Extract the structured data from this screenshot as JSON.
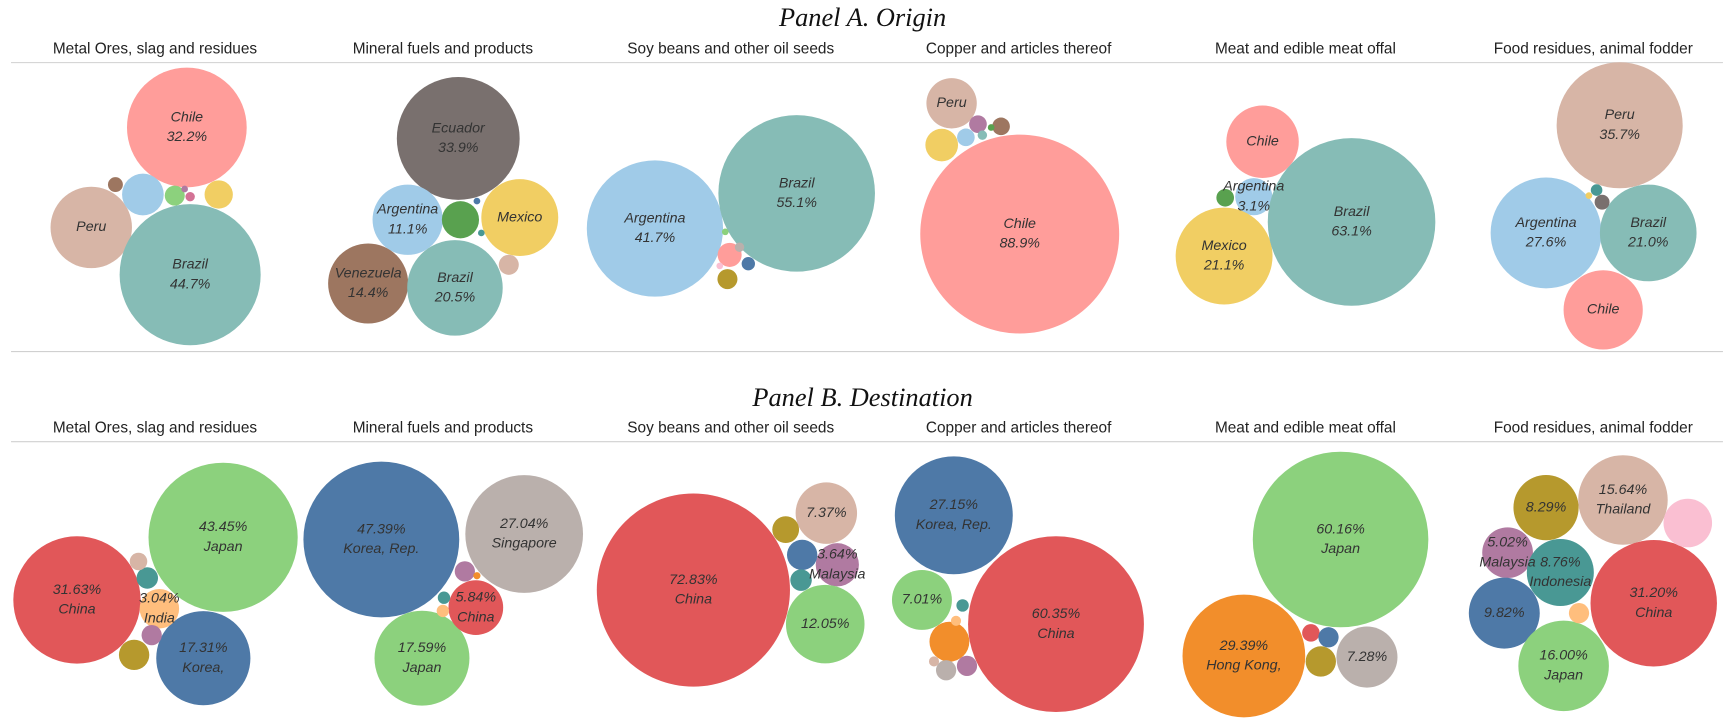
{
  "panel_titles": [
    "Panel A. Origin",
    "Panel B. Destination"
  ],
  "chart_data": [
    {
      "type": "bubble",
      "title": "Metal Ores, slag and residues",
      "categories": [
        "Chile",
        "Peru",
        "Brazil",
        null,
        null,
        null,
        null,
        null,
        null
      ],
      "values": [
        32.2,
        14.9,
        44.7,
        3.9,
        0.9,
        1.8,
        0.5,
        0.2,
        0.1
      ],
      "value_labels": [
        "32.2%",
        null,
        "44.7%",
        null,
        null,
        null,
        null,
        null,
        null
      ],
      "colors": [
        "#ff9d9a",
        "#d7b5a6",
        "#86bcb6",
        "#a0cbe8",
        "#8cd17d",
        "#f1ce63",
        "#9d7660",
        "#d37295",
        "#b07aa1"
      ]
    },
    {
      "type": "bubble",
      "title": "Mineral fuels and products",
      "categories": [
        "Ecuador",
        "Argentina",
        "Mexico",
        "Venezuela",
        "Brazil",
        null,
        null,
        null,
        null
      ],
      "values": [
        33.9,
        11.1,
        13.3,
        14.4,
        20.5,
        3.1,
        0.9,
        0.1,
        0.1
      ],
      "value_labels": [
        "33.9%",
        "11.1%",
        null,
        "14.4%",
        "20.5%",
        null,
        null,
        null,
        null
      ],
      "colors": [
        "#79706e",
        "#a0cbe8",
        "#f1ce63",
        "#9d7660",
        "#86bcb6",
        "#59a14f",
        "#d7b5a6",
        "#4e79a7",
        "#499894"
      ]
    },
    {
      "type": "bubble",
      "title": "Soy beans and other oil seeds",
      "categories": [
        "Argentina",
        "Brazil",
        null,
        null,
        null,
        null,
        null,
        null
      ],
      "values": [
        41.7,
        55.1,
        1.3,
        0.9,
        0.4,
        0.2,
        0.1,
        0.1
      ],
      "value_labels": [
        "41.7%",
        "55.1%",
        null,
        null,
        null,
        null,
        null,
        null
      ],
      "colors": [
        "#a0cbe8",
        "#86bcb6",
        "#ff9d9a",
        "#b6992d",
        "#4e79a7",
        "#bab0ac",
        "#8cd17d",
        "#fabfd2"
      ]
    },
    {
      "type": "bubble",
      "title": "Copper and articles thereof",
      "categories": [
        "Chile",
        "Peru",
        null,
        null,
        null,
        null,
        null,
        null
      ],
      "values": [
        88.9,
        5.7,
        2.4,
        0.7,
        0.7,
        0.7,
        0.2,
        0.1
      ],
      "value_labels": [
        "88.9%",
        null,
        null,
        null,
        null,
        null,
        null,
        null
      ],
      "colors": [
        "#ff9d9a",
        "#d7b5a6",
        "#f1ce63",
        "#a0cbe8",
        "#b07aa1",
        "#9d7660",
        "#86bcb6",
        "#59a14f"
      ]
    },
    {
      "type": "bubble",
      "title": "Meat and edible meat offal",
      "categories": [
        "Chile",
        "Argentina",
        "Mexico",
        "Brazil",
        null
      ],
      "values": [
        11.8,
        3.1,
        21.1,
        63.1,
        0.7
      ],
      "value_labels": [
        null,
        "3.1%",
        "21.1%",
        "63.1%",
        null
      ],
      "colors": [
        "#ff9d9a",
        "#a0cbe8",
        "#f1ce63",
        "#86bcb6",
        "#59a14f"
      ]
    },
    {
      "type": "bubble",
      "title": "Food residues, animal fodder",
      "categories": [
        "Peru",
        "Argentina",
        "Brazil",
        "Chile",
        null,
        null,
        null
      ],
      "values": [
        35.7,
        27.6,
        21.0,
        14.1,
        0.5,
        0.3,
        0.1
      ],
      "value_labels": [
        "35.7%",
        "27.6%",
        "21.0%",
        null,
        null,
        null,
        null
      ],
      "colors": [
        "#d7b5a6",
        "#a0cbe8",
        "#86bcb6",
        "#ff9d9a",
        "#79706e",
        "#499894",
        "#f1ce63"
      ]
    },
    {
      "type": "bubble",
      "title": "Metal Ores, slag and residues",
      "categories": [
        "China",
        "Japan",
        "Korea,",
        "India",
        null,
        null,
        null,
        null
      ],
      "values": [
        31.63,
        43.45,
        17.31,
        3.04,
        0.9,
        0.6,
        0.8,
        1.8
      ],
      "value_labels": [
        "31.63%",
        "43.45%",
        "17.31%",
        "3.04%",
        null,
        null,
        null,
        null
      ],
      "colors": [
        "#e15759",
        "#8cd17d",
        "#4e79a7",
        "#ffbe7d",
        "#499894",
        "#d7b5a6",
        "#b07aa1",
        "#b6992d"
      ]
    },
    {
      "type": "bubble",
      "title": "Mineral fuels and products",
      "categories": [
        "Korea, Rep.",
        "Singapore",
        "Japan",
        "China",
        null,
        null,
        null,
        null
      ],
      "values": [
        47.39,
        27.04,
        17.59,
        5.84,
        0.8,
        0.3,
        0.3,
        0.1
      ],
      "value_labels": [
        "47.39%",
        "27.04%",
        "17.59%",
        "5.84%",
        null,
        null,
        null,
        null
      ],
      "colors": [
        "#4e79a7",
        "#bab0ac",
        "#8cd17d",
        "#e15759",
        "#b07aa1",
        "#499894",
        "#ffbe7d",
        "#f28e2b"
      ]
    },
    {
      "type": "bubble",
      "title": "Soy beans and other oil seeds",
      "categories": [
        "China",
        null,
        "Malaysia",
        null,
        null,
        null,
        null
      ],
      "values": [
        72.83,
        7.37,
        3.64,
        12.05,
        1.4,
        1.8,
        0.9
      ],
      "value_labels": [
        "72.83%",
        "7.37%",
        "3.64%",
        "12.05%",
        null,
        null,
        null
      ],
      "colors": [
        "#e15759",
        "#d7b5a6",
        "#b07aa1",
        "#8cd17d",
        "#b6992d",
        "#4e79a7",
        "#499894"
      ]
    },
    {
      "type": "bubble",
      "title": "Copper and articles thereof",
      "categories": [
        "Korea, Rep.",
        "China",
        null,
        null,
        null,
        null,
        null,
        null,
        null
      ],
      "values": [
        27.15,
        60.35,
        7.01,
        3.1,
        0.8,
        0.8,
        0.3,
        0.2,
        0.2
      ],
      "value_labels": [
        "27.15%",
        "60.35%",
        "7.01%",
        null,
        null,
        null,
        null,
        null,
        null
      ],
      "colors": [
        "#4e79a7",
        "#e15759",
        "#8cd17d",
        "#f28e2b",
        "#b07aa1",
        "#bab0ac",
        "#499894",
        "#d7b5a6",
        "#ffbe7d"
      ]
    },
    {
      "type": "bubble",
      "title": "Meat and edible meat offal",
      "categories": [
        "Japan",
        "Hong Kong,",
        null,
        null,
        null,
        null
      ],
      "values": [
        60.16,
        29.39,
        7.28,
        1.8,
        0.6,
        0.8
      ],
      "value_labels": [
        "60.16%",
        "29.39%",
        "7.28%",
        null,
        null,
        null
      ],
      "colors": [
        "#8cd17d",
        "#f28e2b",
        "#bab0ac",
        "#b6992d",
        "#e15759",
        "#4e79a7"
      ]
    },
    {
      "type": "bubble",
      "title": "Food residues, animal fodder",
      "categories": [
        "Thailand",
        null,
        "Malaysia",
        "Indonesia",
        null,
        "China",
        "Japan",
        null,
        null
      ],
      "values": [
        15.64,
        8.29,
        5.02,
        8.76,
        9.82,
        31.2,
        16.0,
        4.6,
        0.8
      ],
      "value_labels": [
        "15.64%",
        "8.29%",
        "5.02%",
        "8.76%",
        "9.82%",
        "31.20%",
        "16.00%",
        null,
        null
      ],
      "colors": [
        "#d7b5a6",
        "#b6992d",
        "#b07aa1",
        "#499894",
        "#4e79a7",
        "#e15759",
        "#8cd17d",
        "#fabfd2",
        "#ffbe7d"
      ]
    }
  ]
}
